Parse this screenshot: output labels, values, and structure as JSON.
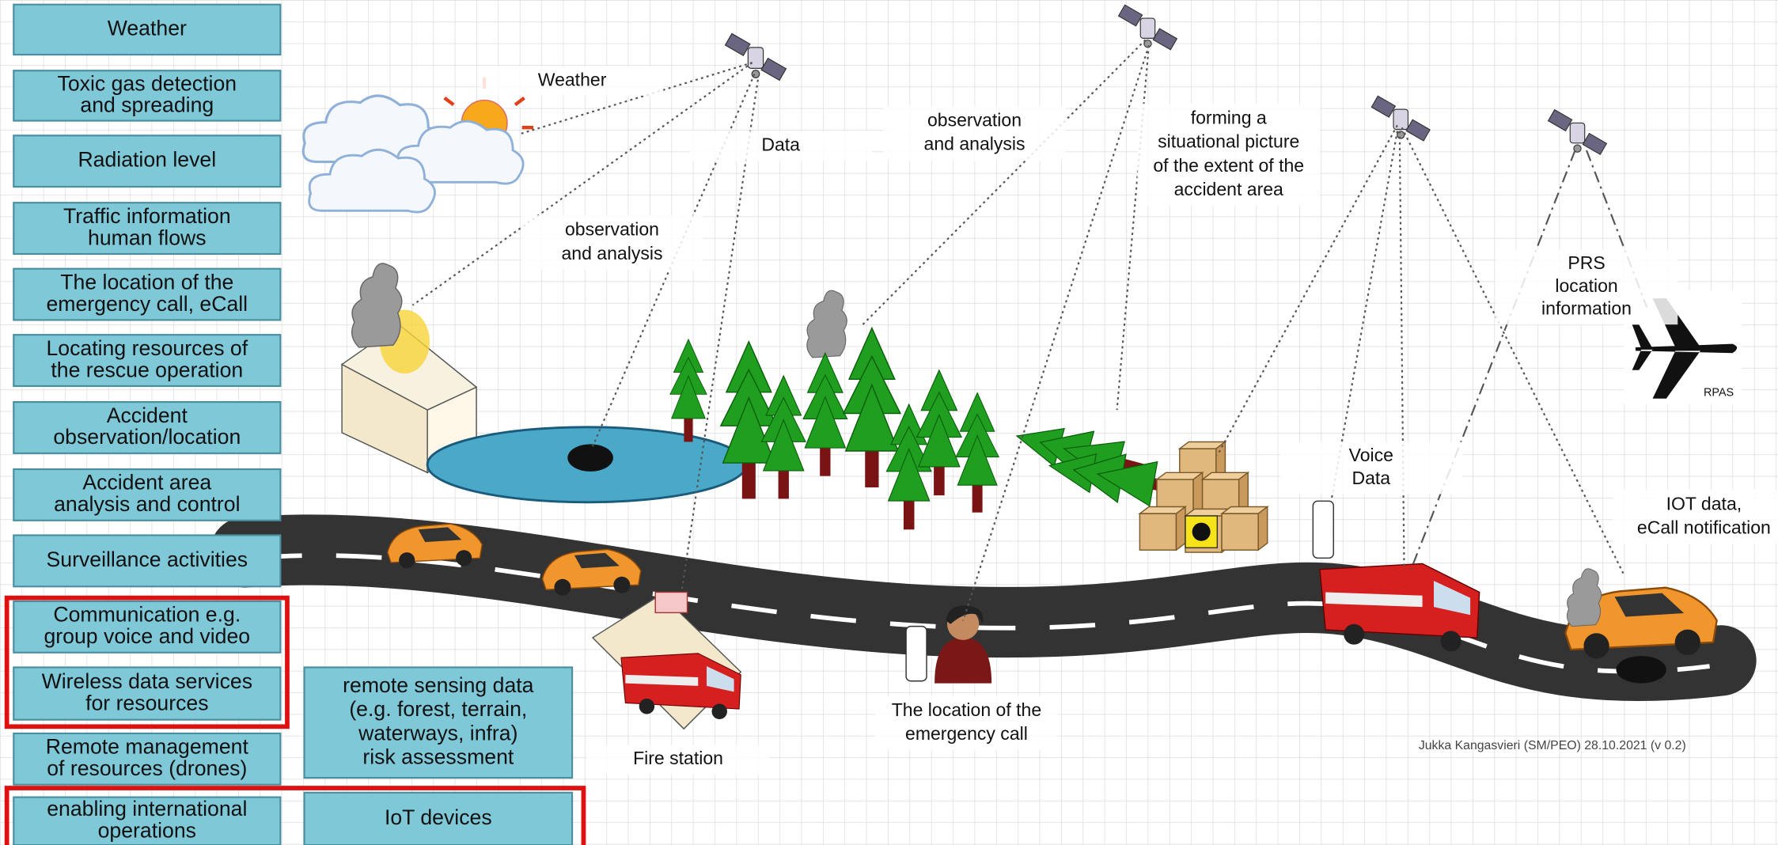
{
  "sidebar": {
    "items": [
      {
        "lines": [
          "Weather"
        ]
      },
      {
        "lines": [
          "Toxic gas detection",
          "and spreading"
        ]
      },
      {
        "lines": [
          "Radiation level"
        ]
      },
      {
        "lines": [
          "Traffic information",
          "human flows"
        ]
      },
      {
        "lines": [
          "The location of the",
          "emergency call, eCall"
        ]
      },
      {
        "lines": [
          "Locating resources of",
          "the rescue operation"
        ]
      },
      {
        "lines": [
          "Accident",
          "observation/location"
        ]
      },
      {
        "lines": [
          "Accident area",
          "analysis and control"
        ]
      },
      {
        "lines": [
          "Surveillance activities"
        ]
      },
      {
        "lines": [
          "Communication e.g.",
          "group voice and video"
        ]
      },
      {
        "lines": [
          "Wireless data services",
          "for resources"
        ]
      },
      {
        "lines": [
          "Remote management",
          "of resources (drones)"
        ]
      },
      {
        "lines": [
          "enabling international",
          "operations"
        ]
      }
    ],
    "second": [
      {
        "lines": [
          "remote sensing data",
          "(e.g. forest, terrain,",
          "waterways, infra)",
          "risk assessment"
        ]
      },
      {
        "lines": [
          "IoT devices"
        ]
      }
    ]
  },
  "scene": {
    "labels": [
      {
        "lines": [
          "Weather"
        ]
      },
      {
        "lines": [
          "Data"
        ]
      },
      {
        "lines": [
          "observation",
          "and analysis"
        ]
      },
      {
        "lines": [
          "observation",
          "and analysis"
        ]
      },
      {
        "lines": [
          "forming a",
          "situational picture",
          "of the extent of the",
          "accident area"
        ]
      },
      {
        "lines": [
          "PRS",
          "location",
          "information"
        ]
      },
      {
        "lines": [
          "RPAS"
        ]
      },
      {
        "lines": [
          "Voice",
          "Data"
        ]
      },
      {
        "lines": [
          "IOT data,",
          "eCall notification"
        ]
      },
      {
        "lines": [
          "The location of the",
          "emergency call"
        ]
      },
      {
        "lines": [
          "Fire station"
        ]
      }
    ],
    "credit": "Jukka Kangasvieri (SM/PEO) 28.10.2021 (v 0.2)"
  }
}
